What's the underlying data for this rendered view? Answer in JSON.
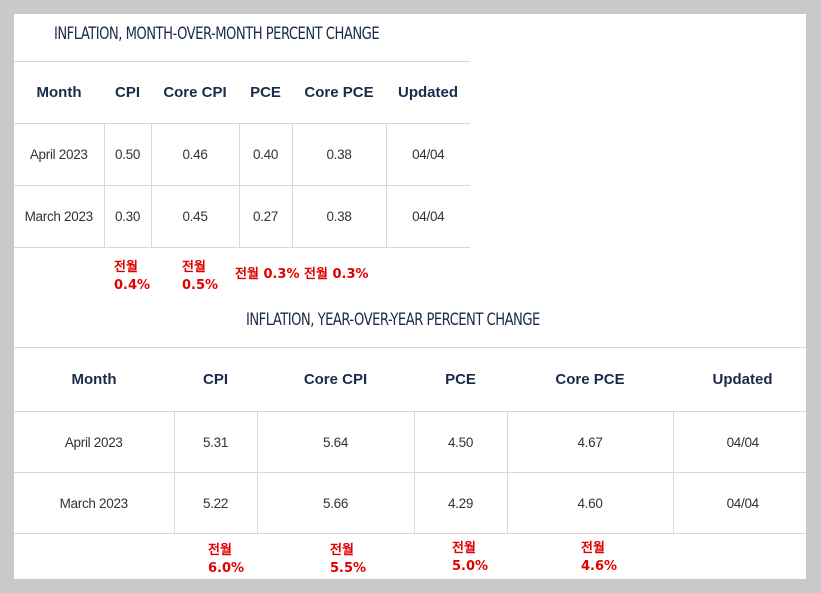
{
  "mom": {
    "title": "INFLATION, MONTH-OVER-MONTH PERCENT CHANGE",
    "headers": [
      "Month",
      "CPI",
      "Core CPI",
      "PCE",
      "Core PCE",
      "Updated"
    ],
    "rows": [
      [
        "April 2023",
        "0.50",
        "0.46",
        "0.40",
        "0.38",
        "04/04"
      ],
      [
        "March 2023",
        "0.30",
        "0.45",
        "0.27",
        "0.38",
        "04/04"
      ]
    ],
    "notes": [
      {
        "label": "전월",
        "value": "0.4%"
      },
      {
        "label": "전월",
        "value": "0.5%"
      },
      {
        "label": "전월",
        "value": "0.3%"
      },
      {
        "label": "전월",
        "value": "0.3%"
      }
    ]
  },
  "yoy": {
    "title": "INFLATION, YEAR-OVER-YEAR PERCENT CHANGE",
    "headers": [
      "Month",
      "CPI",
      "Core CPI",
      "PCE",
      "Core PCE",
      "Updated"
    ],
    "rows": [
      [
        "April 2023",
        "5.31",
        "5.64",
        "4.50",
        "4.67",
        "04/04"
      ],
      [
        "March 2023",
        "5.22",
        "5.66",
        "4.29",
        "4.60",
        "04/04"
      ]
    ],
    "notes": [
      {
        "label": "전월",
        "value": "6.0%"
      },
      {
        "label": "전월",
        "value": "5.5%"
      },
      {
        "label": "전월",
        "value": "5.0%"
      },
      {
        "label": "전월",
        "value": "4.6%"
      }
    ]
  },
  "colors": {
    "heading": "#1a2b4a",
    "annotation": "#e00000",
    "rule": "#d8d8d8"
  }
}
